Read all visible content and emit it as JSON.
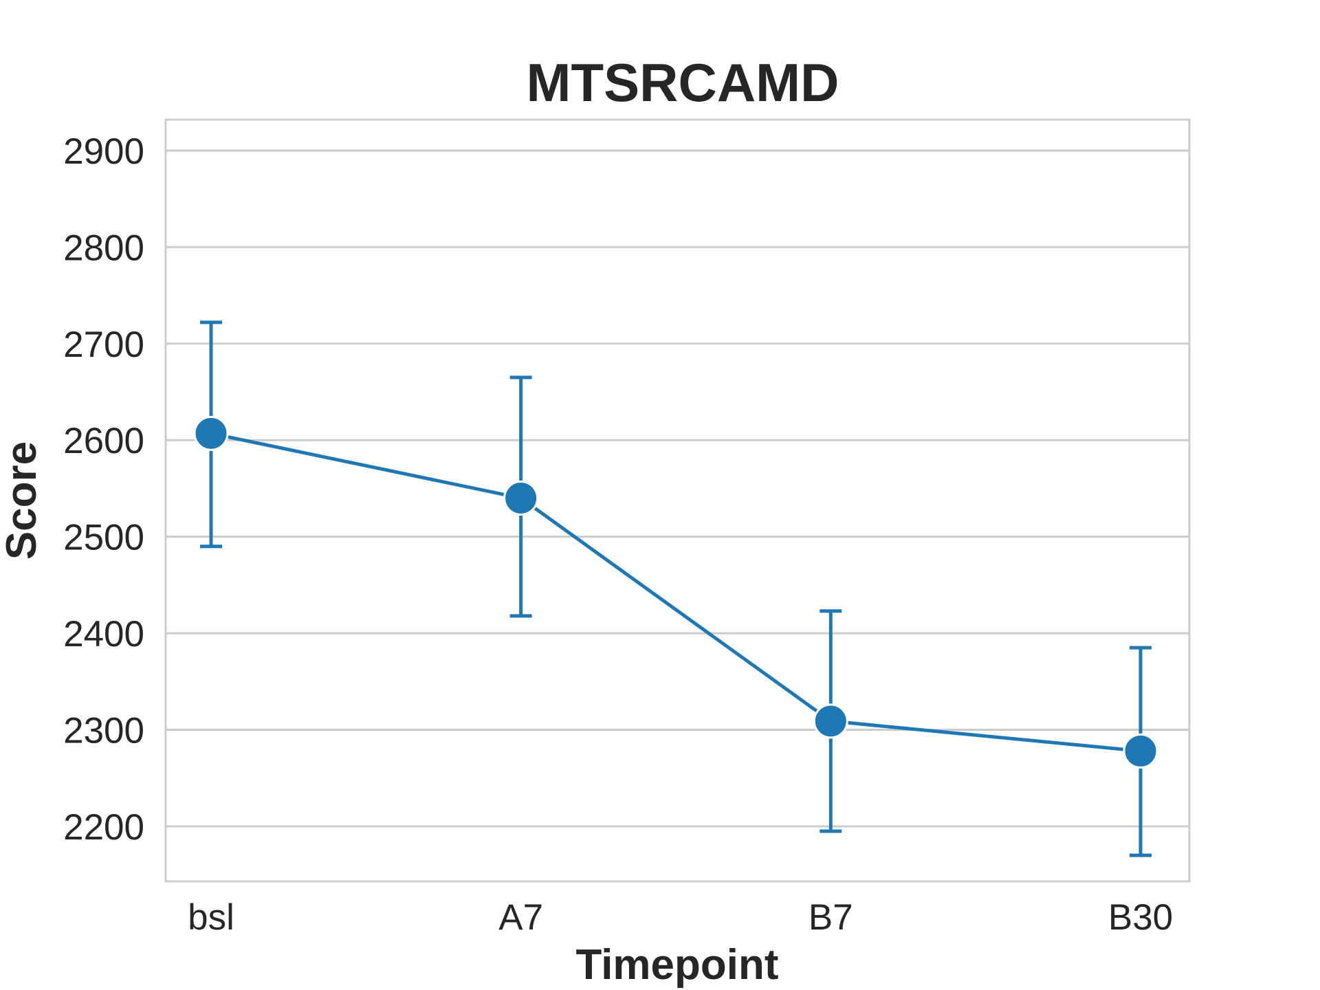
{
  "chart_data": {
    "type": "line",
    "title": "MTSRCAMD",
    "xlabel": "Timepoint",
    "ylabel": "Score",
    "categories": [
      "bsl",
      "A7",
      "B7",
      "B30"
    ],
    "series": [
      {
        "values": [
          2607,
          2540,
          2309,
          2278
        ],
        "error_low": [
          2490,
          2418,
          2195,
          2170
        ],
        "error_high": [
          2722,
          2665,
          2423,
          2385
        ],
        "color": "#1f77b4"
      }
    ],
    "yticks": [
      2200,
      2300,
      2400,
      2500,
      2600,
      2700,
      2800,
      2900
    ],
    "ylim": [
      2143,
      2932
    ],
    "grid": "horizontal",
    "legend": "none"
  }
}
